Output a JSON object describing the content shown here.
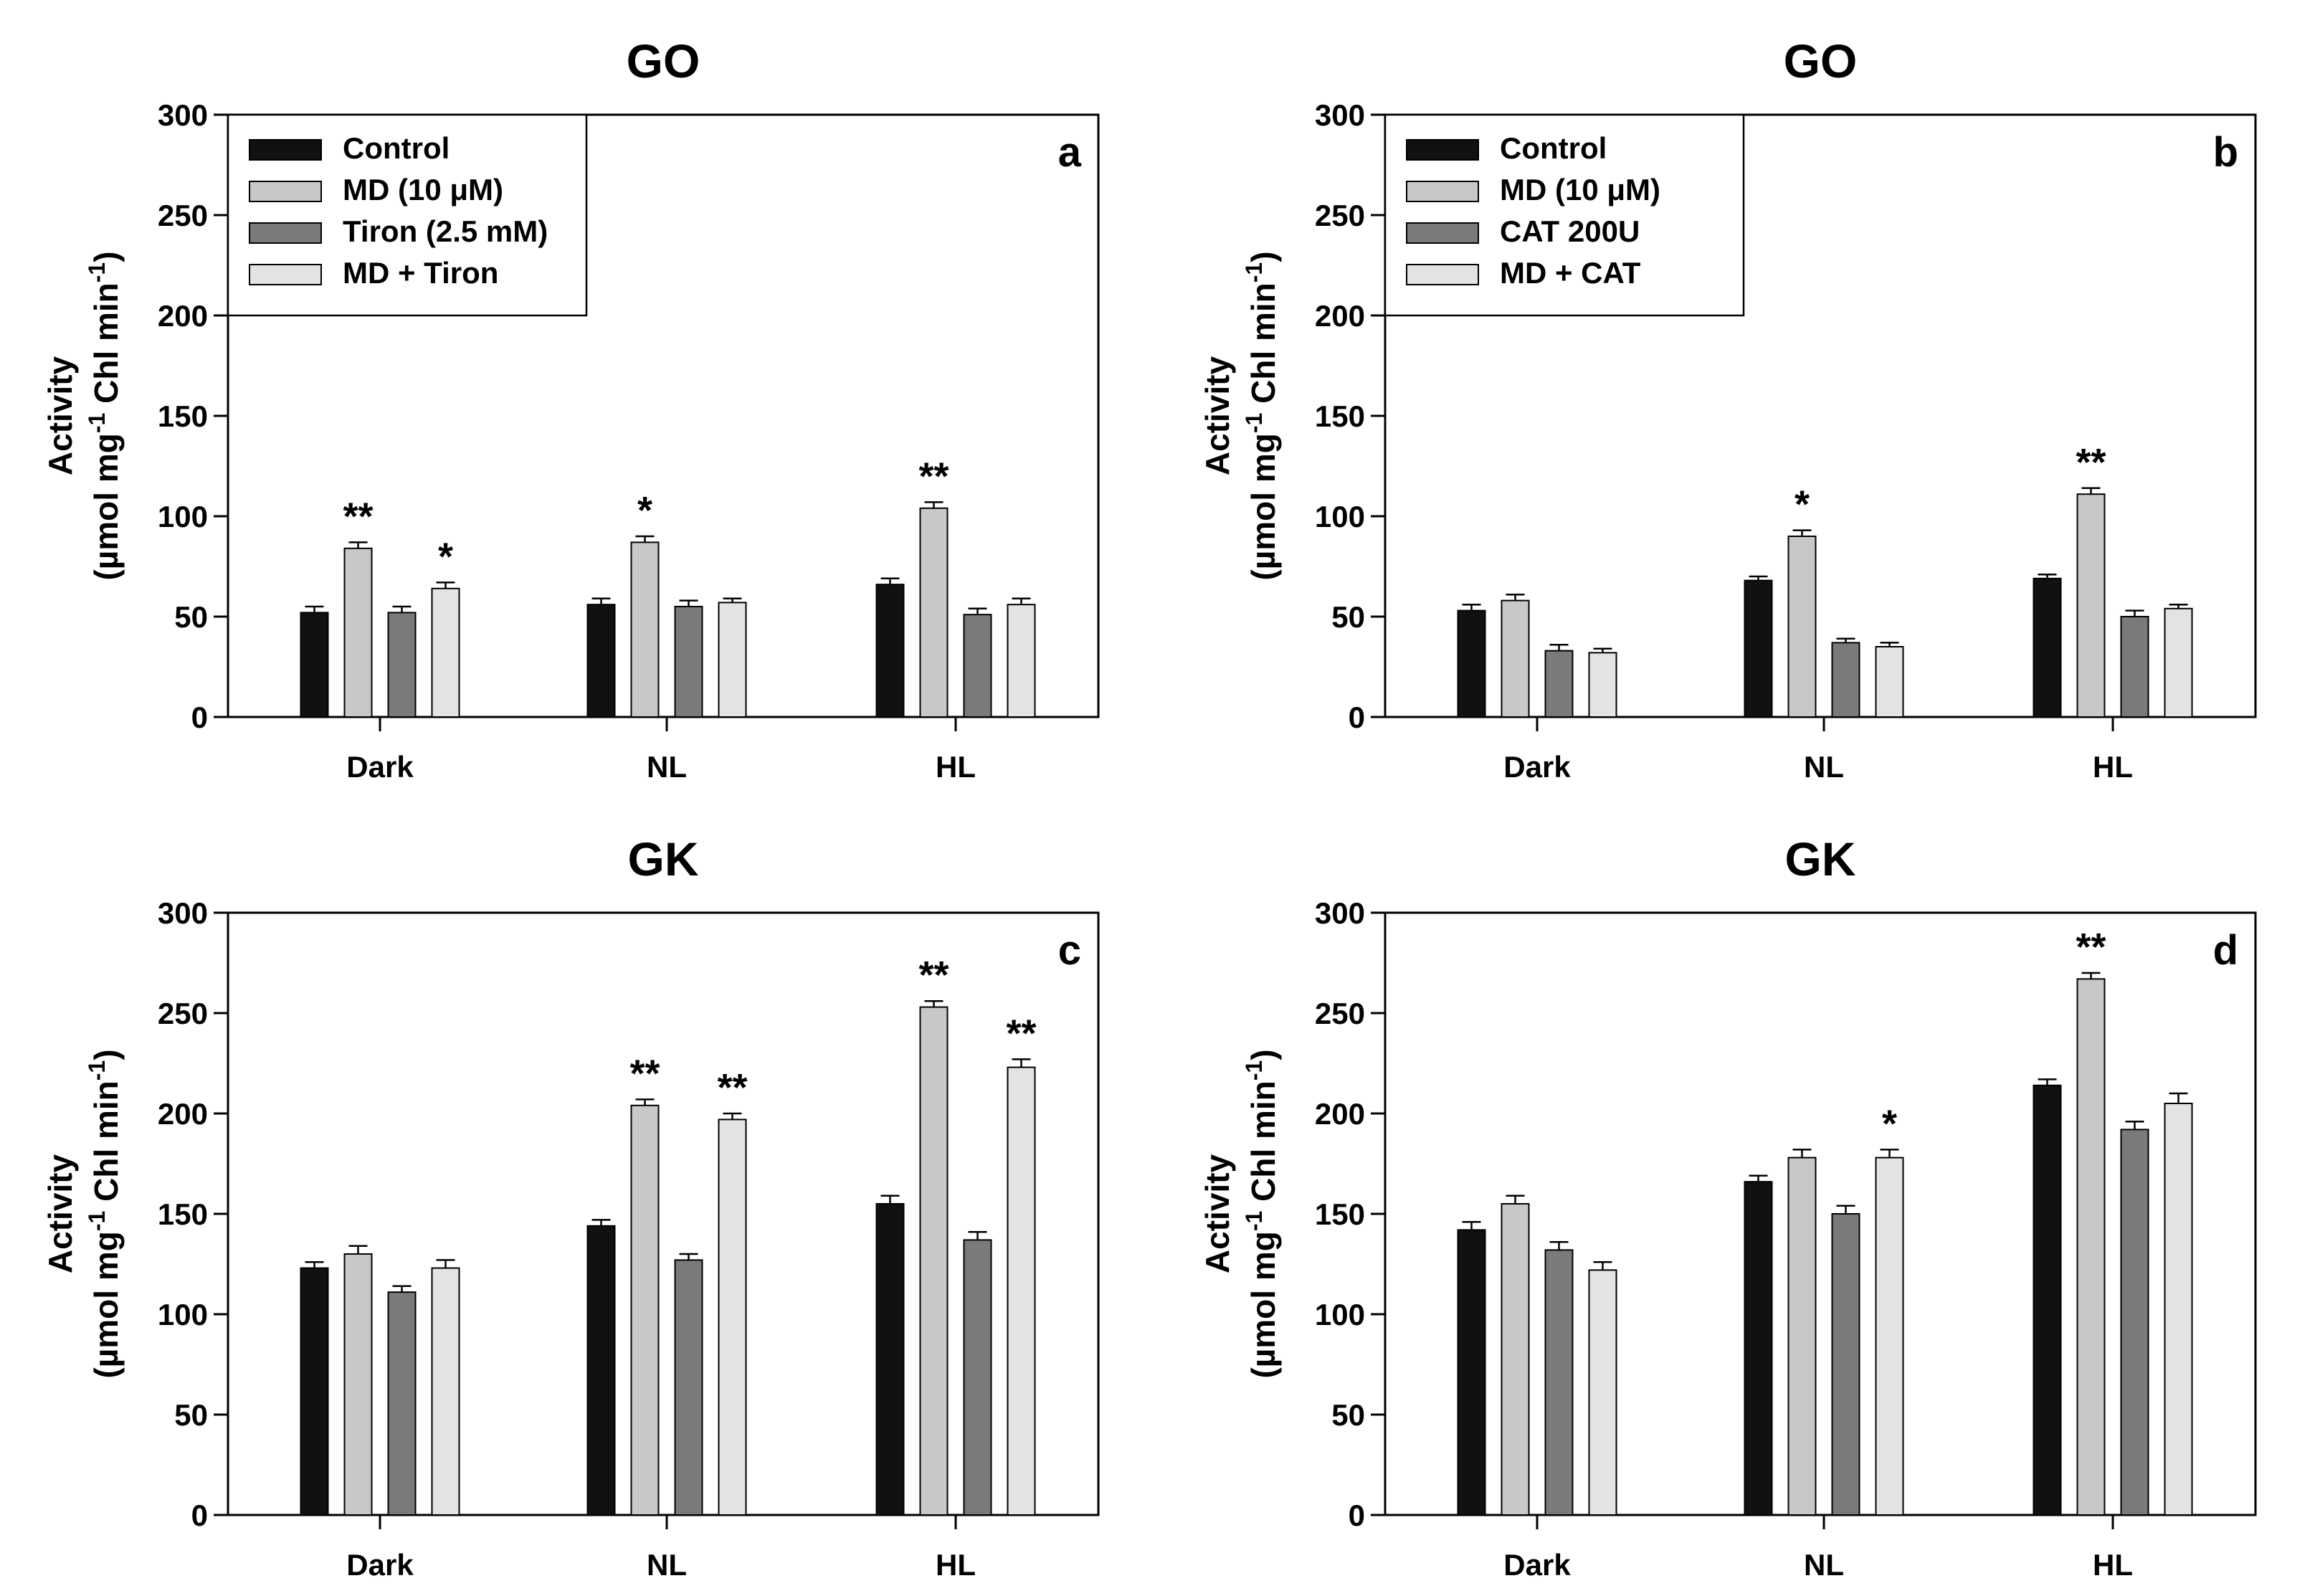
{
  "figure": {
    "categories": [
      "Dark",
      "NL",
      "HL"
    ]
  },
  "chart_data": [
    {
      "type": "bar",
      "panel": "a",
      "title": "GO",
      "ylabel_line1": "Activity",
      "ylabel_line2": "(µmol mg-1 Chl min-1)",
      "ylabel_unit": "µmol mg",
      "ylabel_exp1": "-1",
      "ylabel_mid": " Chl min",
      "ylabel_exp2": "-1",
      "ylim": [
        0,
        300
      ],
      "yticks": [
        0,
        50,
        100,
        150,
        200,
        250,
        300
      ],
      "legend_position": "top-left",
      "categories": [
        "Dark",
        "NL",
        "HL"
      ],
      "series": [
        {
          "name": "Control",
          "color": "#111111",
          "values": [
            52,
            56,
            66
          ],
          "errors": [
            3,
            3,
            3
          ],
          "sig": [
            "",
            "",
            ""
          ]
        },
        {
          "name": "MD (10 μM)",
          "color": "#c8c8c8",
          "values": [
            84,
            87,
            104
          ],
          "errors": [
            3,
            3,
            3
          ],
          "sig": [
            "**",
            "*",
            "**"
          ]
        },
        {
          "name": "Tiron (2.5 mM)",
          "color": "#7a7a7a",
          "values": [
            52,
            55,
            51
          ],
          "errors": [
            3,
            3,
            3
          ],
          "sig": [
            "",
            "",
            ""
          ]
        },
        {
          "name": "MD + Tiron",
          "color": "#e3e3e3",
          "values": [
            64,
            57,
            56
          ],
          "errors": [
            3,
            2,
            3
          ],
          "sig": [
            "*",
            "",
            ""
          ]
        }
      ]
    },
    {
      "type": "bar",
      "panel": "b",
      "title": "GO",
      "ylabel_line1": "Activity",
      "ylabel_line2": "(µmol mg-1 Chl min-1)",
      "ylabel_unit": "µmol mg",
      "ylabel_exp1": "-1",
      "ylabel_mid": " Chl min",
      "ylabel_exp2": "-1",
      "ylim": [
        0,
        300
      ],
      "yticks": [
        0,
        50,
        100,
        150,
        200,
        250,
        300
      ],
      "legend_position": "top-left",
      "categories": [
        "Dark",
        "NL",
        "HL"
      ],
      "series": [
        {
          "name": "Control",
          "color": "#111111",
          "values": [
            53,
            68,
            69
          ],
          "errors": [
            3,
            2,
            2
          ],
          "sig": [
            "",
            "",
            ""
          ]
        },
        {
          "name": "MD (10 μM)",
          "color": "#c8c8c8",
          "values": [
            58,
            90,
            111
          ],
          "errors": [
            3,
            3,
            3
          ],
          "sig": [
            "",
            "*",
            "**"
          ]
        },
        {
          "name": "CAT 200U",
          "color": "#7a7a7a",
          "values": [
            33,
            37,
            50
          ],
          "errors": [
            3,
            2,
            3
          ],
          "sig": [
            "",
            "",
            ""
          ]
        },
        {
          "name": "MD + CAT",
          "color": "#e3e3e3",
          "values": [
            32,
            35,
            54
          ],
          "errors": [
            2,
            2,
            2
          ],
          "sig": [
            "",
            "",
            ""
          ]
        }
      ]
    },
    {
      "type": "bar",
      "panel": "c",
      "title": "GK",
      "ylabel_line1": "Activity",
      "ylabel_line2": "(µmol mg-1 Chl min-1)",
      "ylabel_unit": "µmol mg",
      "ylabel_exp1": "-1",
      "ylabel_mid": " Chl min",
      "ylabel_exp2": "-1",
      "ylim": [
        0,
        300
      ],
      "yticks": [
        0,
        50,
        100,
        150,
        200,
        250,
        300
      ],
      "legend_position": "none",
      "categories": [
        "Dark",
        "NL",
        "HL"
      ],
      "series": [
        {
          "name": "Control",
          "color": "#111111",
          "values": [
            123,
            144,
            155
          ],
          "errors": [
            3,
            3,
            4
          ],
          "sig": [
            "",
            "",
            ""
          ]
        },
        {
          "name": "MD (10 μM)",
          "color": "#c8c8c8",
          "values": [
            130,
            204,
            253
          ],
          "errors": [
            4,
            3,
            3
          ],
          "sig": [
            "",
            "**",
            "**"
          ]
        },
        {
          "name": "Tiron (2.5 mM)",
          "color": "#7a7a7a",
          "values": [
            111,
            127,
            137
          ],
          "errors": [
            3,
            3,
            4
          ],
          "sig": [
            "",
            "",
            ""
          ]
        },
        {
          "name": "MD + Tiron",
          "color": "#e3e3e3",
          "values": [
            123,
            197,
            223
          ],
          "errors": [
            4,
            3,
            4
          ],
          "sig": [
            "",
            "**",
            "**"
          ]
        }
      ]
    },
    {
      "type": "bar",
      "panel": "d",
      "title": "GK",
      "ylabel_line1": "Activity",
      "ylabel_line2": "(µmol mg-1 Chl min-1)",
      "ylabel_unit": "µmol mg",
      "ylabel_exp1": "-1",
      "ylabel_mid": " Chl min",
      "ylabel_exp2": "-1",
      "ylim": [
        0,
        300
      ],
      "yticks": [
        0,
        50,
        100,
        150,
        200,
        250,
        300
      ],
      "legend_position": "none",
      "categories": [
        "Dark",
        "NL",
        "HL"
      ],
      "series": [
        {
          "name": "Control",
          "color": "#111111",
          "values": [
            142,
            166,
            214
          ],
          "errors": [
            4,
            3,
            3
          ],
          "sig": [
            "",
            "",
            ""
          ]
        },
        {
          "name": "MD (10 μM)",
          "color": "#c8c8c8",
          "values": [
            155,
            178,
            267
          ],
          "errors": [
            4,
            4,
            3
          ],
          "sig": [
            "",
            "",
            "**"
          ]
        },
        {
          "name": "CAT 200U",
          "color": "#7a7a7a",
          "values": [
            132,
            150,
            192
          ],
          "errors": [
            4,
            4,
            4
          ],
          "sig": [
            "",
            "",
            ""
          ]
        },
        {
          "name": "MD + CAT",
          "color": "#e3e3e3",
          "values": [
            122,
            178,
            205
          ],
          "errors": [
            4,
            4,
            5
          ],
          "sig": [
            "",
            "*",
            ""
          ]
        }
      ]
    }
  ]
}
